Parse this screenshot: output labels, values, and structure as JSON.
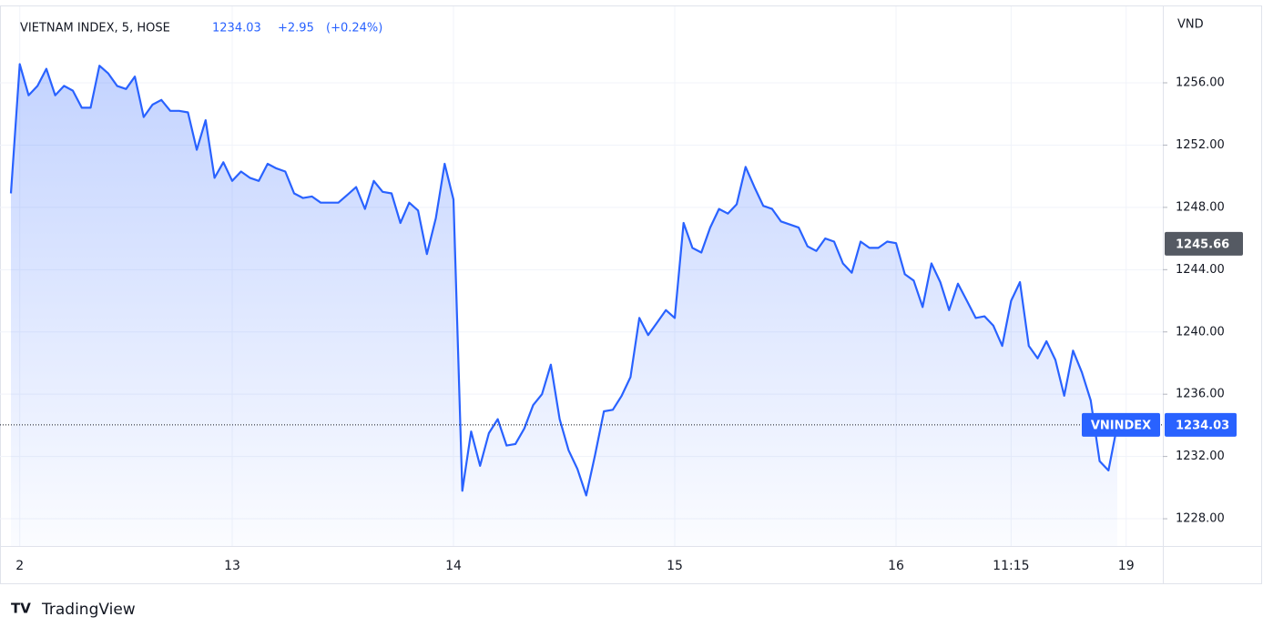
{
  "chart_data": {
    "type": "area",
    "title": "VIETNAM INDEX, 5, HOSE",
    "change": "+2.95",
    "change_percent": "(+0.24%)",
    "y_unit": "VND",
    "brand": "TradingView",
    "marker_price": 1245.66,
    "grid": true,
    "categories": [
      null,
      "2",
      null,
      null,
      null,
      null,
      null,
      null,
      null,
      null,
      null,
      null,
      null,
      null,
      null,
      null,
      null,
      null,
      null,
      null,
      null,
      null,
      null,
      null,
      null,
      "13",
      null,
      null,
      null,
      null,
      null,
      null,
      null,
      null,
      null,
      null,
      null,
      null,
      null,
      null,
      null,
      null,
      null,
      null,
      null,
      null,
      null,
      null,
      null,
      null,
      "14",
      null,
      null,
      null,
      null,
      null,
      null,
      null,
      null,
      null,
      null,
      null,
      null,
      null,
      null,
      null,
      null,
      null,
      null,
      null,
      null,
      null,
      null,
      null,
      null,
      "15",
      null,
      null,
      null,
      null,
      null,
      null,
      null,
      null,
      null,
      null,
      null,
      null,
      null,
      null,
      null,
      null,
      null,
      null,
      null,
      null,
      null,
      null,
      null,
      null,
      "16",
      null,
      null,
      null,
      null,
      null,
      null,
      null,
      null,
      null,
      null,
      null,
      null,
      "11:15",
      null,
      null,
      null,
      null,
      null,
      null,
      null,
      null,
      null,
      null,
      null,
      null,
      "19"
    ],
    "series": [
      {
        "name": "VNINDEX",
        "color": "#2962ff",
        "values": [
          1248.9,
          1257.2,
          1255.2,
          1255.8,
          1256.9,
          1255.2,
          1255.8,
          1255.5,
          1254.4,
          1254.4,
          1257.1,
          1256.6,
          1255.8,
          1255.6,
          1256.4,
          1253.8,
          1254.6,
          1254.9,
          1254.2,
          1254.2,
          1254.1,
          1251.7,
          1253.6,
          1249.9,
          1250.9,
          1249.7,
          1250.3,
          1249.9,
          1249.7,
          1250.8,
          1250.5,
          1250.3,
          1248.9,
          1248.6,
          1248.7,
          1248.3,
          1248.3,
          1248.3,
          1248.8,
          1249.3,
          1247.9,
          1249.7,
          1249.0,
          1248.9,
          1247.0,
          1248.3,
          1247.8,
          1245.0,
          1247.3,
          1250.8,
          1248.5,
          1229.8,
          1233.6,
          1231.4,
          1233.5,
          1234.4,
          1232.7,
          1232.8,
          1233.8,
          1235.3,
          1236.0,
          1237.9,
          1234.4,
          1232.4,
          1231.2,
          1229.5,
          1232.1,
          1234.9,
          1235.0,
          1235.9,
          1237.1,
          1240.9,
          1239.8,
          1240.6,
          1241.4,
          1240.9,
          1247.0,
          1245.4,
          1245.1,
          1246.7,
          1247.9,
          1247.6,
          1248.2,
          1250.6,
          1249.3,
          1248.1,
          1247.9,
          1247.1,
          1246.9,
          1246.7,
          1245.5,
          1245.2,
          1246.0,
          1245.8,
          1244.4,
          1243.8,
          1245.8,
          1245.4,
          1245.4,
          1245.8,
          1245.7,
          1243.7,
          1243.3,
          1241.6,
          1244.4,
          1243.2,
          1241.4,
          1243.1,
          1242.0,
          1240.9,
          1241.0,
          1240.4,
          1239.1,
          1242.0,
          1243.2,
          1239.1,
          1238.3,
          1239.4,
          1238.2,
          1235.9,
          1238.8,
          1237.4,
          1235.6,
          1231.7,
          1231.1,
          1234.03,
          null
        ]
      }
    ],
    "ylim": [
      1226.25,
      1260.91
    ],
    "yticks": [
      {
        "value": 1228,
        "label": "1228.00"
      },
      {
        "value": 1232,
        "label": "1232.00"
      },
      {
        "value": 1236,
        "label": "1236.00"
      },
      {
        "value": 1240,
        "label": "1240.00"
      },
      {
        "value": 1244,
        "label": "1244.00"
      },
      {
        "value": 1248,
        "label": "1248.00"
      },
      {
        "value": 1252,
        "label": "1252.00"
      },
      {
        "value": 1256,
        "label": "1256.00"
      }
    ]
  }
}
